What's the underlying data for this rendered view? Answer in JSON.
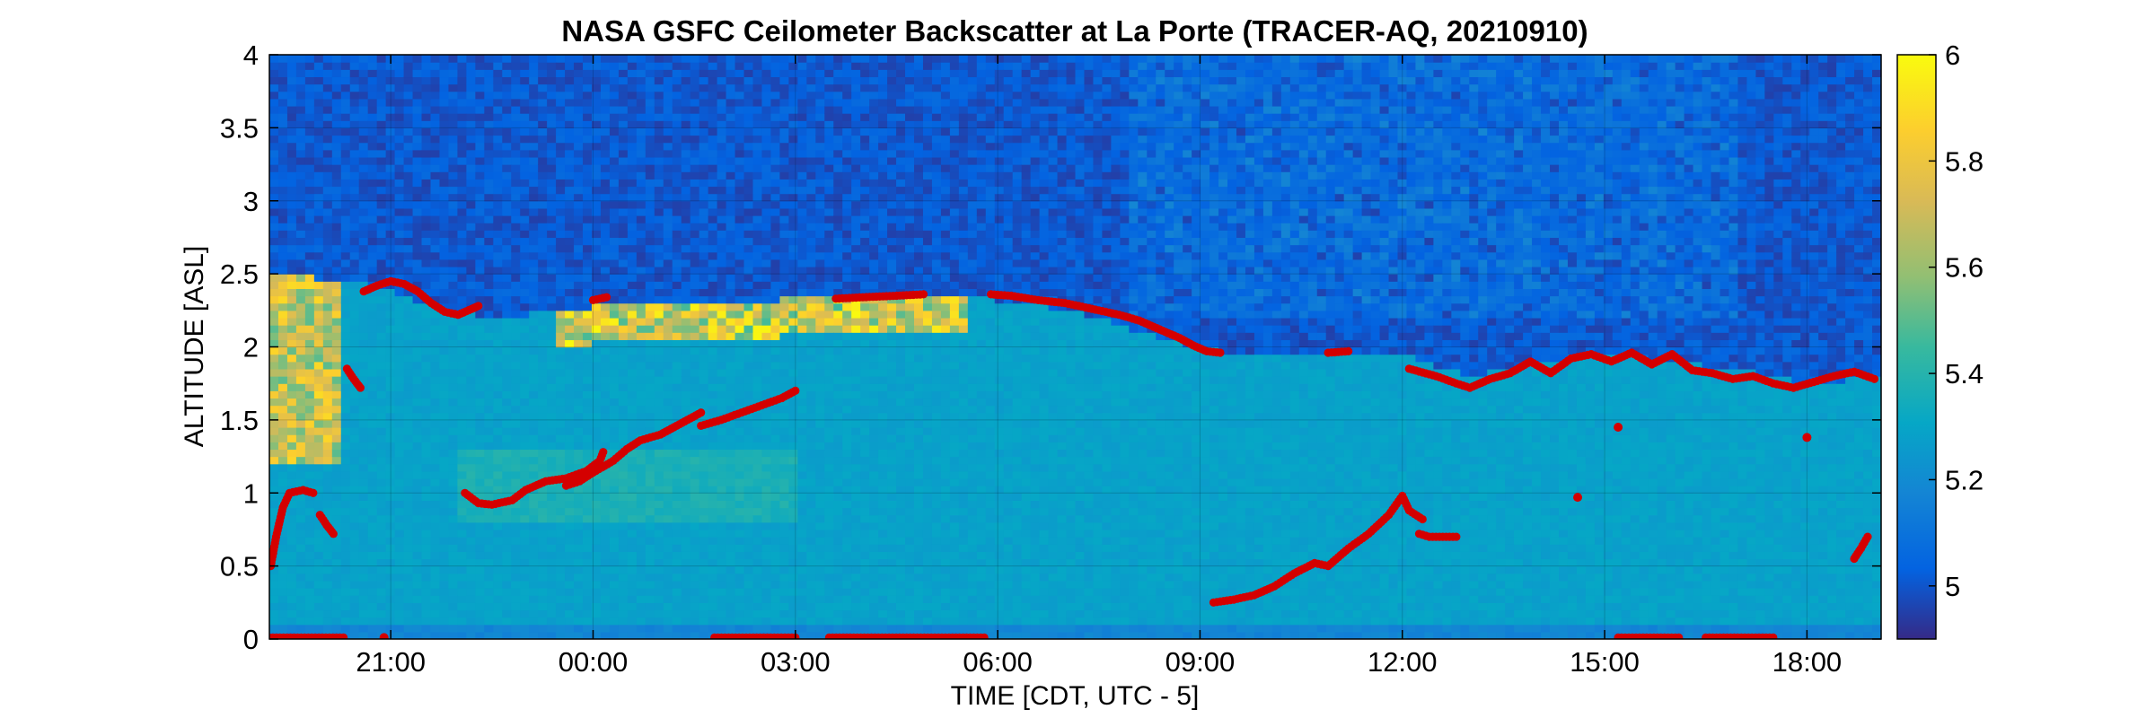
{
  "chart_data": {
    "type": "heatmap",
    "title": "NASA GSFC Ceilometer Backscatter at La Porte (TRACER-AQ, 20210910)",
    "xlabel": "TIME [CDT, UTC - 5]",
    "ylabel": "ALTITUDE [ASL]",
    "x_unit": "hours (CDT, continuous)",
    "xlim": [
      19.2,
      43.1
    ],
    "ylim": [
      0,
      4
    ],
    "x_ticks": [
      {
        "value": 21,
        "label": "21:00"
      },
      {
        "value": 24,
        "label": "00:00"
      },
      {
        "value": 27,
        "label": "03:00"
      },
      {
        "value": 30,
        "label": "06:00"
      },
      {
        "value": 33,
        "label": "09:00"
      },
      {
        "value": 36,
        "label": "12:00"
      },
      {
        "value": 39,
        "label": "15:00"
      },
      {
        "value": 42,
        "label": "18:00"
      }
    ],
    "y_ticks": [
      {
        "value": 0,
        "label": "0"
      },
      {
        "value": 0.5,
        "label": "0.5"
      },
      {
        "value": 1,
        "label": "1"
      },
      {
        "value": 1.5,
        "label": "1.5"
      },
      {
        "value": 2,
        "label": "2"
      },
      {
        "value": 2.5,
        "label": "2.5"
      },
      {
        "value": 3,
        "label": "3"
      },
      {
        "value": 3.5,
        "label": "3.5"
      },
      {
        "value": 4,
        "label": "4"
      }
    ],
    "grid": true,
    "colorbar": {
      "colormap": "parula",
      "range": [
        4.9,
        6
      ],
      "ticks": [
        {
          "value": 5,
          "label": "5"
        },
        {
          "value": 5.2,
          "label": "5.2"
        },
        {
          "value": 5.4,
          "label": "5.4"
        },
        {
          "value": 5.6,
          "label": "5.6"
        },
        {
          "value": 5.8,
          "label": "5.8"
        },
        {
          "value": 6,
          "label": "6"
        }
      ]
    },
    "aerosol_layer_top": [
      [
        19.2,
        2.5
      ],
      [
        20.5,
        2.45
      ],
      [
        21.5,
        2.3
      ],
      [
        22.5,
        2.2
      ],
      [
        23.5,
        2.25
      ],
      [
        24.5,
        2.3
      ],
      [
        26.0,
        2.32
      ],
      [
        27.5,
        2.33
      ],
      [
        28.5,
        2.34
      ],
      [
        29.5,
        2.35
      ],
      [
        30.5,
        2.3
      ],
      [
        31.5,
        2.2
      ],
      [
        32.5,
        2.05
      ],
      [
        33.3,
        1.97
      ],
      [
        34.0,
        1.95
      ],
      [
        35.0,
        1.97
      ],
      [
        36.0,
        1.95
      ],
      [
        37.0,
        1.8
      ],
      [
        38.0,
        1.9
      ],
      [
        39.0,
        1.95
      ],
      [
        40.0,
        1.9
      ],
      [
        41.0,
        1.85
      ],
      [
        42.0,
        1.75
      ],
      [
        43.1,
        1.8
      ]
    ],
    "series": [
      {
        "marker_color": "#d40000",
        "segments": [
          [
            [
              19.22,
              0.5
            ],
            [
              19.3,
              0.7
            ],
            [
              19.4,
              0.9
            ],
            [
              19.5,
              1.0
            ],
            [
              19.7,
              1.02
            ],
            [
              19.85,
              1.0
            ]
          ],
          [
            [
              19.95,
              0.85
            ],
            [
              20.05,
              0.78
            ],
            [
              20.15,
              0.72
            ]
          ],
          [
            [
              20.35,
              1.85
            ],
            [
              20.45,
              1.78
            ],
            [
              20.55,
              1.72
            ]
          ],
          [
            [
              20.6,
              2.38
            ],
            [
              20.8,
              2.42
            ],
            [
              21.0,
              2.45
            ],
            [
              21.2,
              2.43
            ],
            [
              21.4,
              2.38
            ],
            [
              21.6,
              2.3
            ],
            [
              21.8,
              2.24
            ],
            [
              22.0,
              2.22
            ],
            [
              22.2,
              2.26
            ],
            [
              22.3,
              2.28
            ]
          ],
          [
            [
              22.1,
              1.0
            ],
            [
              22.3,
              0.93
            ],
            [
              22.5,
              0.92
            ],
            [
              22.8,
              0.95
            ],
            [
              23.0,
              1.02
            ],
            [
              23.3,
              1.08
            ],
            [
              23.6,
              1.1
            ],
            [
              23.9,
              1.15
            ],
            [
              24.1,
              1.22
            ],
            [
              24.15,
              1.28
            ]
          ],
          [
            [
              23.6,
              1.05
            ],
            [
              23.8,
              1.08
            ],
            [
              24.0,
              1.14
            ],
            [
              24.3,
              1.22
            ],
            [
              24.5,
              1.3
            ],
            [
              24.7,
              1.36
            ],
            [
              25.0,
              1.4
            ],
            [
              25.2,
              1.45
            ],
            [
              25.4,
              1.5
            ],
            [
              25.6,
              1.55
            ]
          ],
          [
            [
              25.6,
              1.46
            ],
            [
              25.9,
              1.5
            ],
            [
              26.2,
              1.55
            ],
            [
              26.5,
              1.6
            ],
            [
              26.8,
              1.65
            ],
            [
              27.0,
              1.7
            ]
          ],
          [
            [
              24.0,
              2.32
            ],
            [
              24.2,
              2.34
            ]
          ],
          [
            [
              27.6,
              2.33
            ],
            [
              28.0,
              2.34
            ],
            [
              28.5,
              2.35
            ],
            [
              28.9,
              2.36
            ]
          ],
          [
            [
              29.9,
              2.36
            ],
            [
              30.2,
              2.35
            ],
            [
              30.6,
              2.32
            ],
            [
              31.0,
              2.3
            ],
            [
              31.4,
              2.26
            ],
            [
              31.8,
              2.22
            ],
            [
              32.1,
              2.18
            ],
            [
              32.4,
              2.12
            ],
            [
              32.7,
              2.06
            ],
            [
              32.9,
              2.01
            ],
            [
              33.1,
              1.97
            ],
            [
              33.3,
              1.96
            ]
          ],
          [
            [
              33.2,
              0.25
            ],
            [
              33.5,
              0.27
            ],
            [
              33.8,
              0.3
            ],
            [
              34.1,
              0.36
            ],
            [
              34.4,
              0.45
            ],
            [
              34.7,
              0.52
            ],
            [
              34.9,
              0.5
            ],
            [
              35.2,
              0.62
            ],
            [
              35.5,
              0.72
            ],
            [
              35.8,
              0.85
            ],
            [
              36.0,
              0.98
            ],
            [
              36.1,
              0.88
            ],
            [
              36.3,
              0.82
            ]
          ],
          [
            [
              36.25,
              0.72
            ],
            [
              36.4,
              0.7
            ],
            [
              36.8,
              0.7
            ]
          ],
          [
            [
              34.9,
              1.96
            ],
            [
              35.2,
              1.97
            ]
          ],
          [
            [
              36.1,
              1.85
            ],
            [
              36.5,
              1.8
            ],
            [
              36.8,
              1.75
            ],
            [
              37.0,
              1.72
            ],
            [
              37.3,
              1.78
            ],
            [
              37.6,
              1.82
            ],
            [
              37.9,
              1.9
            ],
            [
              38.2,
              1.82
            ],
            [
              38.5,
              1.92
            ],
            [
              38.8,
              1.95
            ],
            [
              39.1,
              1.9
            ],
            [
              39.4,
              1.96
            ],
            [
              39.7,
              1.88
            ],
            [
              40.0,
              1.95
            ],
            [
              40.3,
              1.84
            ],
            [
              40.6,
              1.82
            ],
            [
              40.9,
              1.78
            ],
            [
              41.2,
              1.8
            ],
            [
              41.5,
              1.75
            ],
            [
              41.8,
              1.72
            ],
            [
              42.1,
              1.76
            ],
            [
              42.4,
              1.8
            ],
            [
              42.7,
              1.83
            ],
            [
              43.0,
              1.78
            ]
          ],
          [
            [
              39.2,
              1.45
            ]
          ],
          [
            [
              38.6,
              0.97
            ]
          ],
          [
            [
              42.0,
              1.38
            ]
          ],
          [
            [
              42.7,
              0.55
            ],
            [
              42.8,
              0.62
            ],
            [
              42.9,
              0.7
            ]
          ],
          [
            [
              19.2,
              0.01
            ],
            [
              20.3,
              0.01
            ]
          ],
          [
            [
              20.9,
              0.01
            ]
          ],
          [
            [
              25.8,
              0.01
            ],
            [
              27.0,
              0.01
            ]
          ],
          [
            [
              27.5,
              0.01
            ],
            [
              29.8,
              0.01
            ]
          ],
          [
            [
              39.2,
              0.01
            ],
            [
              40.1,
              0.01
            ]
          ],
          [
            [
              40.5,
              0.01
            ],
            [
              41.5,
              0.01
            ]
          ]
        ]
      }
    ]
  }
}
